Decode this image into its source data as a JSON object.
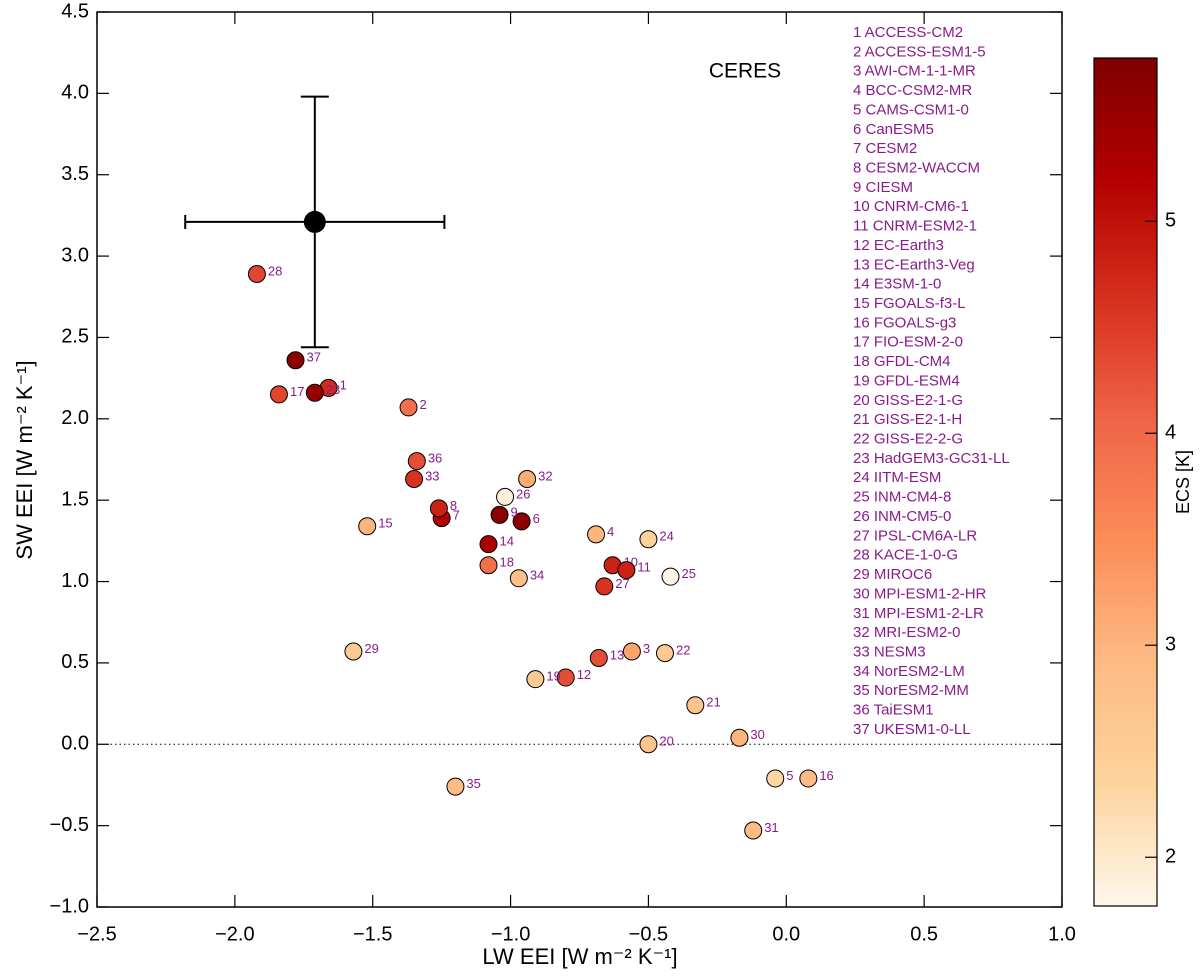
{
  "chart_data": {
    "type": "scatter",
    "annotation": "CERES",
    "x_label": "LW EEI [W m⁻² K⁻¹]",
    "y_label": "SW EEI [W m⁻² K⁻¹]",
    "colorbar_label": "ECS [K]",
    "xlim": [
      -2.5,
      1.0
    ],
    "ylim": [
      -1.0,
      4.5
    ],
    "clim": [
      1.77,
      5.77
    ],
    "colormap": [
      "#fff7ec",
      "#fdd49e",
      "#fdbb84",
      "#fc8d59",
      "#ef6548",
      "#d7301f",
      "#b30000",
      "#7f0000"
    ],
    "cticks": [
      2,
      3,
      4,
      5
    ],
    "xticks": [
      {
        "value": -2.5,
        "label": "−2.5"
      },
      {
        "value": -2.0,
        "label": "−2.0"
      },
      {
        "value": -1.5,
        "label": "−1.5"
      },
      {
        "value": -1.0,
        "label": "−1.0"
      },
      {
        "value": -0.5,
        "label": "−0.5"
      },
      {
        "value": 0.0,
        "label": "0.0"
      },
      {
        "value": 0.5,
        "label": "0.5"
      },
      {
        "value": 1.0,
        "label": "1.0"
      }
    ],
    "yticks": [
      {
        "value": -1.0,
        "label": "−1.0"
      },
      {
        "value": -0.5,
        "label": "−0.5"
      },
      {
        "value": 0.0,
        "label": "0.0"
      },
      {
        "value": 0.5,
        "label": "0.5"
      },
      {
        "value": 1.0,
        "label": "1.0"
      },
      {
        "value": 1.5,
        "label": "1.5"
      },
      {
        "value": 2.0,
        "label": "2.0"
      },
      {
        "value": 2.5,
        "label": "2.5"
      },
      {
        "value": 3.0,
        "label": "3.0"
      },
      {
        "value": 3.5,
        "label": "3.5"
      },
      {
        "value": 4.0,
        "label": "4.0"
      },
      {
        "value": 4.5,
        "label": "4.5"
      }
    ],
    "reference_line": 0,
    "observation": {
      "x": -1.71,
      "y": 3.21,
      "x_error": 0.47,
      "y_error": 0.77,
      "color": "#000000"
    },
    "point_labels": [
      "1",
      "2",
      "3",
      "4",
      "5",
      "6",
      "7",
      "8",
      "9",
      "10",
      "11",
      "12",
      "13",
      "14",
      "15",
      "16",
      "17",
      "18",
      "19",
      "20",
      "21",
      "22",
      "23",
      "24",
      "25",
      "26",
      "27",
      "28",
      "29",
      "30",
      "31",
      "32",
      "33",
      "34",
      "35",
      "36",
      "37"
    ],
    "x": [
      -1.66,
      -1.37,
      -0.56,
      -0.69,
      -0.04,
      -0.96,
      -1.25,
      -1.26,
      -1.04,
      -0.63,
      -0.58,
      -0.8,
      -0.68,
      -1.08,
      -1.52,
      0.08,
      -1.84,
      -1.08,
      -0.91,
      -0.5,
      -0.33,
      -0.44,
      -1.71,
      -0.5,
      -0.42,
      -1.02,
      -0.66,
      -1.92,
      -1.57,
      -0.17,
      -0.12,
      -0.94,
      -1.35,
      -0.97,
      -1.2,
      -1.34,
      -1.78
    ],
    "values": [
      2.19,
      2.07,
      0.57,
      1.29,
      -0.21,
      1.37,
      1.39,
      1.45,
      1.41,
      1.1,
      1.07,
      0.41,
      0.53,
      1.23,
      1.34,
      -0.21,
      2.15,
      1.1,
      0.4,
      0.0,
      0.24,
      0.56,
      2.16,
      1.26,
      1.03,
      1.52,
      0.97,
      2.89,
      0.57,
      0.04,
      -0.53,
      1.63,
      1.63,
      1.02,
      -0.26,
      1.74,
      2.36
    ],
    "color_values": [
      4.7,
      3.9,
      3.2,
      3.0,
      2.3,
      5.6,
      5.2,
      4.8,
      5.6,
      4.8,
      4.8,
      4.3,
      4.3,
      5.3,
      3.0,
      2.9,
      4.4,
      3.9,
      2.6,
      2.7,
      2.7,
      2.6,
      5.5,
      2.4,
      1.8,
      1.9,
      4.6,
      4.4,
      2.6,
      3.0,
      2.9,
      3.1,
      4.6,
      2.8,
      2.9,
      4.3,
      5.6
    ],
    "model_list": [
      "1 ACCESS-CM2",
      "2 ACCESS-ESM1-5",
      "3 AWI-CM-1-1-MR",
      "4 BCC-CSM2-MR",
      "5 CAMS-CSM1-0",
      "6 CanESM5",
      "7 CESM2",
      "8 CESM2-WACCM",
      "9 CIESM",
      "10 CNRM-CM6-1",
      "11 CNRM-ESM2-1",
      "12 EC-Earth3",
      "13 EC-Earth3-Veg",
      "14 E3SM-1-0",
      "15 FGOALS-f3-L",
      "16 FGOALS-g3",
      "17 FIO-ESM-2-0",
      "18 GFDL-CM4",
      "19 GFDL-ESM4",
      "20 GISS-E2-1-G",
      "21 GISS-E2-1-H",
      "22 GISS-E2-2-G",
      "23 HadGEM3-GC31-LL",
      "24 IITM-ESM",
      "25 INM-CM4-8",
      "26 INM-CM5-0",
      "27 IPSL-CM6A-LR",
      "28 KACE-1-0-G",
      "29 MIROC6",
      "30 MPI-ESM1-2-HR",
      "31 MPI-ESM1-2-LR",
      "32 MRI-ESM2-0",
      "33 NESM3",
      "34 NorESM2-LM",
      "35 NorESM2-MM",
      "36 TaiESM1",
      "37 UKESM1-0-LL"
    ]
  }
}
